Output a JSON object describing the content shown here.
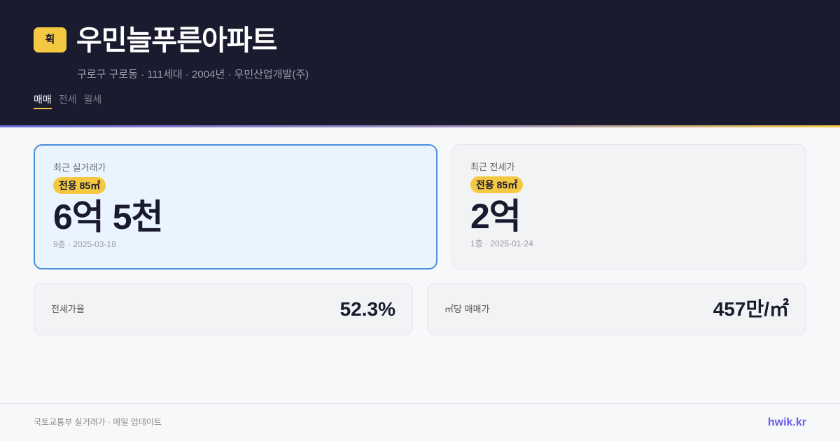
{
  "header": {
    "logo_text": "휙",
    "title": "우민늘푸른아파트",
    "subtitle": "구로구 구로동 · 111세대 · 2004년 · 우민산업개발(주)",
    "tabs": [
      {
        "label": "매매",
        "active": true
      },
      {
        "label": "전세",
        "active": false
      },
      {
        "label": "월세",
        "active": false
      }
    ]
  },
  "cards": {
    "sale": {
      "label": "최근 실거래가",
      "badge": "전용 85㎡",
      "price": "6억 5천",
      "meta": "9층 · 2025-03-18"
    },
    "jeonse": {
      "label": "최근 전세가",
      "badge": "전용 85㎡",
      "price": "2억",
      "meta": "1층 · 2025-01-24"
    },
    "ratio": {
      "label": "전세가율",
      "value": "52.3%"
    },
    "per_area": {
      "label": "㎡당 매매가",
      "value": "457만/㎡"
    }
  },
  "footer": {
    "source": "국토교통부 실거래가 · 매일 업데이트",
    "brand": "hwik.kr"
  },
  "colors": {
    "header_bg": "#1b1b30",
    "accent": "#f5c842",
    "brand": "#6b5ce7",
    "highlight_border": "#4a90d9"
  }
}
